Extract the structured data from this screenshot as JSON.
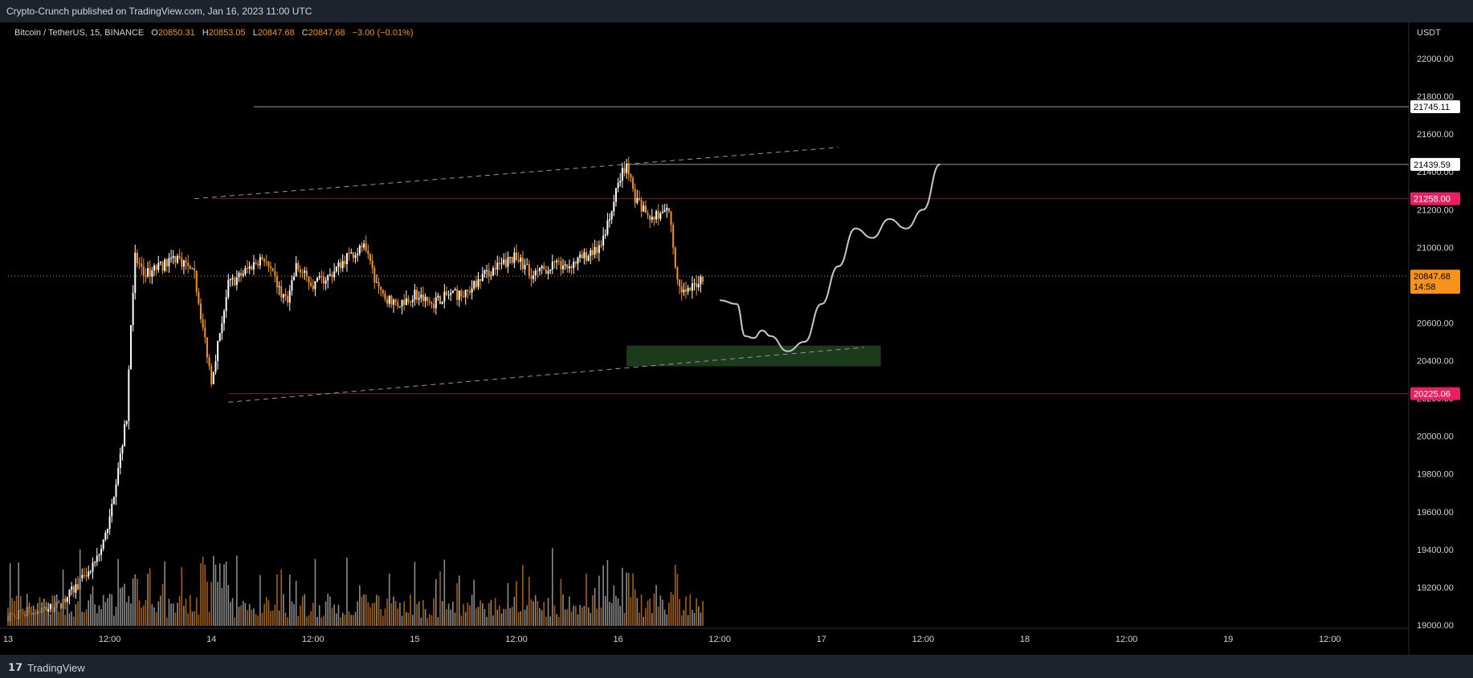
{
  "header": {
    "publish_text": "Crypto-Crunch published on TradingView.com, Jan 16, 2023 11:00 UTC"
  },
  "legend": {
    "symbol": "Bitcoin / TetherUS, 15, BINANCE",
    "o_label": "O",
    "o": "20850.31",
    "h_label": "H",
    "h": "20853.05",
    "l_label": "L",
    "l": "20847.68",
    "c_label": "C",
    "c": "20847.68",
    "change": "−3.00 (−0.01%)"
  },
  "footer": {
    "brand": "TradingView",
    "logo_icon": "tradingview-logo-icon"
  },
  "colors": {
    "up": "#ffffff",
    "down": "#f7931a",
    "support_zone": "#1c3a1c",
    "red_line": "#7a1e2a",
    "pink_badge": "#e91e63",
    "price_badge": "#f7931a"
  },
  "chart_data": {
    "type": "candlestick",
    "title": "Bitcoin / TetherUS, 15, BINANCE",
    "ylabel": "USDT",
    "ylim": [
      18900,
      22150
    ],
    "y_ticks": [
      "22000.00",
      "21800.00",
      "21600.00",
      "21400.00",
      "21200.00",
      "21000.00",
      "20800.00",
      "20600.00",
      "20400.00",
      "20200.00",
      "20000.00",
      "19800.00",
      "19600.00",
      "19400.00",
      "19200.00",
      "19000.00"
    ],
    "x_ticks": [
      "13",
      "12:00",
      "14",
      "12:00",
      "15",
      "12:00",
      "16",
      "12:00",
      "17",
      "12:00",
      "18",
      "12:00",
      "19",
      "12:00"
    ],
    "x_tick_hours": [
      0,
      12,
      24,
      36,
      48,
      60,
      72,
      84,
      96,
      108,
      120,
      132,
      144,
      156
    ],
    "price_path_hours": [
      0,
      6,
      8,
      10,
      11,
      12,
      13,
      14,
      14.5,
      15,
      16,
      18,
      20,
      22,
      24,
      26,
      30,
      33,
      34,
      36,
      38,
      40,
      42,
      44,
      46,
      48,
      50,
      52,
      54,
      56,
      58,
      60,
      62,
      64,
      66,
      68,
      70,
      72,
      73,
      74,
      76,
      78,
      79,
      80,
      81,
      82
    ],
    "price_path_values": [
      19050,
      19100,
      19200,
      19300,
      19400,
      19550,
      19850,
      20100,
      20600,
      20950,
      20850,
      20900,
      20950,
      20850,
      20300,
      20800,
      20950,
      20700,
      20900,
      20800,
      20850,
      20950,
      21000,
      20750,
      20700,
      20750,
      20700,
      20750,
      20750,
      20850,
      20900,
      20950,
      20850,
      20900,
      20900,
      20950,
      21000,
      21350,
      21440,
      21250,
      21150,
      21200,
      20800,
      20750,
      20800,
      20848
    ],
    "volume_max_label": "",
    "horizontal_levels": [
      {
        "value": 21745.11,
        "label": "21745.11",
        "style": "white",
        "from_hour": 29
      },
      {
        "value": 21439.59,
        "label": "21439.59",
        "style": "white",
        "from_hour": 73
      },
      {
        "value": 21258.0,
        "label": "21258.00",
        "style": "pink",
        "from_hour": 24
      },
      {
        "value": 20225.06,
        "label": "20225.06",
        "style": "pink",
        "from_hour": 26
      }
    ],
    "current_price": {
      "value": 20847.68,
      "label": "20847.68",
      "countdown": "14:58"
    },
    "channel_upper": [
      {
        "h": 22,
        "v": 21258
      },
      {
        "h": 98,
        "v": 21530
      }
    ],
    "channel_lower": [
      {
        "h": 26,
        "v": 20180
      },
      {
        "h": 101,
        "v": 20470
      }
    ],
    "support_zone": {
      "from_hour": 73,
      "to_hour": 103,
      "low": 20370,
      "high": 20480
    },
    "projection": [
      {
        "h": 84,
        "v": 20720
      },
      {
        "h": 86,
        "v": 20700
      },
      {
        "h": 87,
        "v": 20530
      },
      {
        "h": 88,
        "v": 20520
      },
      {
        "h": 89,
        "v": 20560
      },
      {
        "h": 90,
        "v": 20530
      },
      {
        "h": 92,
        "v": 20450
      },
      {
        "h": 94,
        "v": 20500
      },
      {
        "h": 96,
        "v": 20700
      },
      {
        "h": 98,
        "v": 20900
      },
      {
        "h": 100,
        "v": 21100
      },
      {
        "h": 102,
        "v": 21050
      },
      {
        "h": 104,
        "v": 21150
      },
      {
        "h": 106,
        "v": 21100
      },
      {
        "h": 108,
        "v": 21200
      },
      {
        "h": 110,
        "v": 21440
      }
    ]
  }
}
